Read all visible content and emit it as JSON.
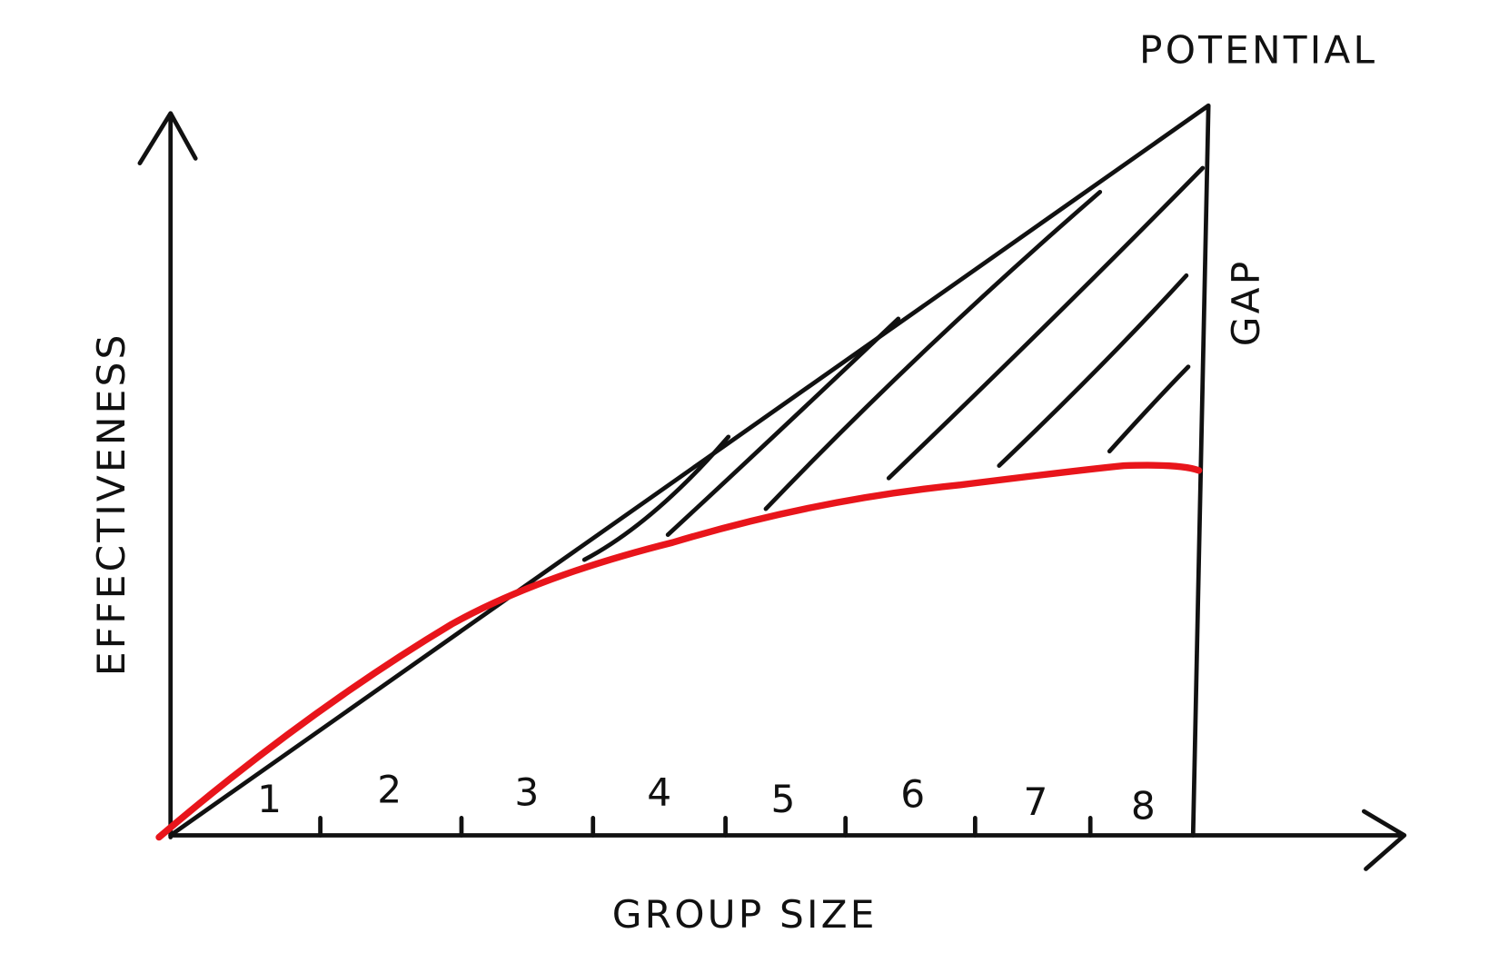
{
  "labels": {
    "potential": "POTENTIAL",
    "gap": "GAP",
    "y_axis": "EFFECTIVENESS",
    "x_axis": "GROUP SIZE"
  },
  "group_sizes": [
    1,
    2,
    3,
    4,
    5,
    6,
    7,
    8
  ]
}
